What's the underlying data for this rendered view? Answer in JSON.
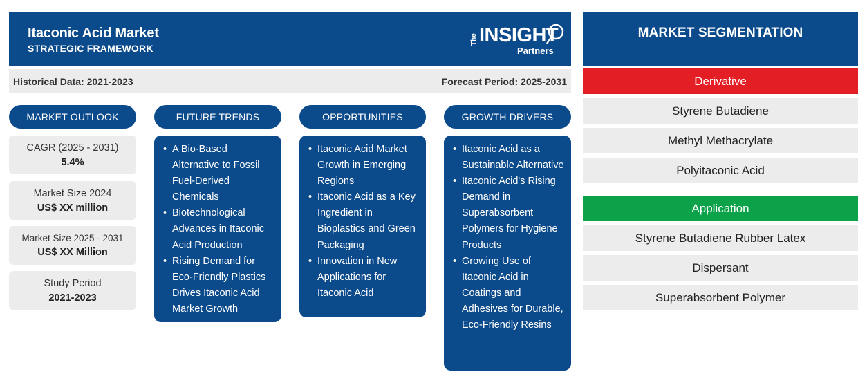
{
  "header": {
    "title": "Itaconic Acid Market",
    "subtitle": "STRATEGIC FRAMEWORK"
  },
  "logo": {
    "the": "The",
    "insight": "INSIGHT",
    "partners": "Partners"
  },
  "dates": {
    "historical": "Historical Data: 2021-2023",
    "forecast": "Forecast Period: 2025-2031"
  },
  "columns": {
    "market_outlook": "MARKET OUTLOOK",
    "future_trends": "FUTURE TRENDS",
    "opportunities": "OPPORTUNITIES",
    "growth_drivers": "GROWTH DRIVERS"
  },
  "metrics": [
    {
      "label": "CAGR (2025 - 2031)",
      "value": "5.4%"
    },
    {
      "label": "Market Size 2024",
      "value": "US$ XX million"
    },
    {
      "label": "Market Size 2025 - 2031",
      "value": "US$ XX Million"
    },
    {
      "label": "Study Period",
      "value": "2021-2023"
    }
  ],
  "future_trends": [
    "A Bio-Based Alternative to Fossil Fuel-Derived Chemicals",
    "Biotechnological Advances in Itaconic Acid Production",
    "Rising Demand for Eco-Friendly Plastics Drives Itaconic Acid Market Growth"
  ],
  "opportunities": [
    "Itaconic Acid Market Growth in Emerging Regions",
    "Itaconic Acid as a Key Ingredient in Bioplastics and Green Packaging",
    "Innovation in New Applications for Itaconic Acid"
  ],
  "growth_drivers": [
    "Itaconic Acid as a Sustainable Alternative",
    "Itaconic Acid's Rising Demand in Superabsorbent Polymers for Hygiene Products",
    "Growing Use of Itaconic Acid in Coatings and Adhesives for Durable, Eco-Friendly Resins"
  ],
  "segmentation": {
    "title": "MARKET SEGMENTATION",
    "derivative": {
      "label": "Derivative",
      "color": "#e31e24",
      "items": [
        "Styrene Butadiene",
        "Methyl Methacrylate",
        "Polyitaconic Acid"
      ]
    },
    "application": {
      "label": "Application",
      "color": "#0ba24a",
      "items": [
        "Styrene Butadiene Rubber Latex",
        "Dispersant",
        "Superabsorbent Polymer"
      ]
    }
  },
  "colors": {
    "brand_blue": "#0b4a8b",
    "panel_gray": "#ececec"
  }
}
